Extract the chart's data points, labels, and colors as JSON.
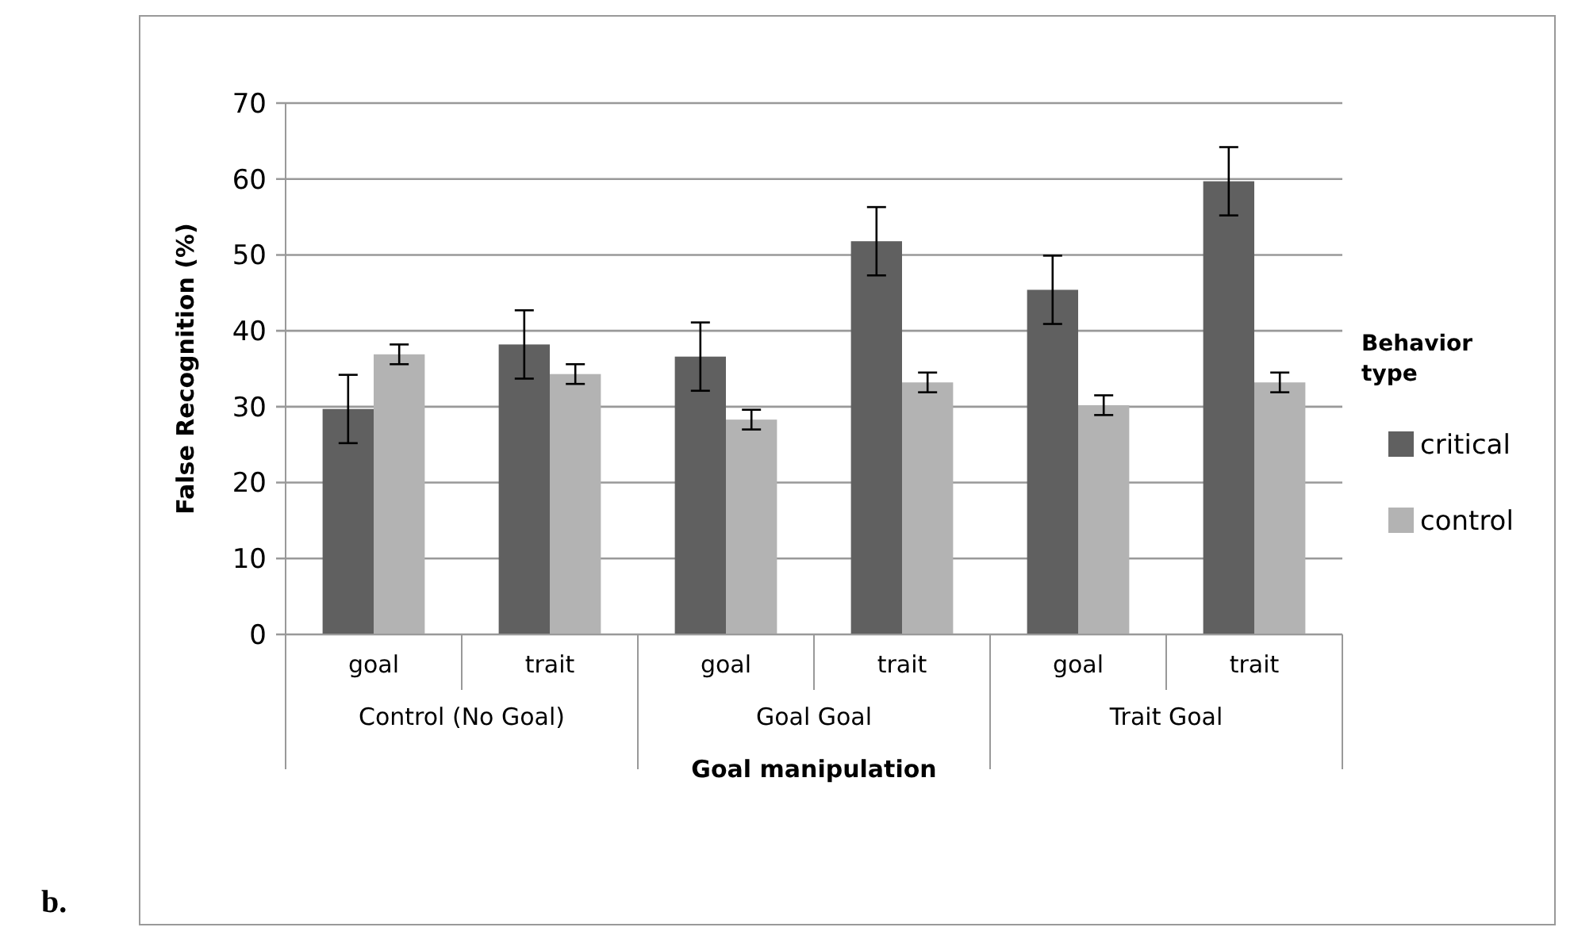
{
  "chart_data": {
    "type": "bar",
    "xlabel": "Goal manipulation",
    "ylabel": "False Recognition (%)",
    "legend_title": "Behavior type",
    "categories": [
      "goal",
      "trait",
      "goal",
      "trait",
      "goal",
      "trait"
    ],
    "series": [
      {
        "name": "critical",
        "color": "#606060",
        "values": [
          29.7,
          38.2,
          36.6,
          51.8,
          45.4,
          59.7
        ],
        "errors": [
          4.5,
          4.5,
          4.5,
          4.5,
          4.5,
          4.5
        ]
      },
      {
        "name": "control",
        "color": "#b3b3b3",
        "values": [
          36.9,
          34.3,
          28.3,
          33.2,
          30.2,
          33.2
        ],
        "errors": [
          1.3,
          1.3,
          1.3,
          1.3,
          1.3,
          1.3
        ]
      }
    ],
    "annotations": [
      "Control (No Goal)",
      "Goal Goal",
      "Trait Goal",
      "b."
    ],
    "ylim": [
      0,
      70
    ],
    "yticks": [
      0,
      10,
      20,
      30,
      40,
      50,
      60,
      70
    ],
    "grid": "y",
    "legend": "right"
  }
}
